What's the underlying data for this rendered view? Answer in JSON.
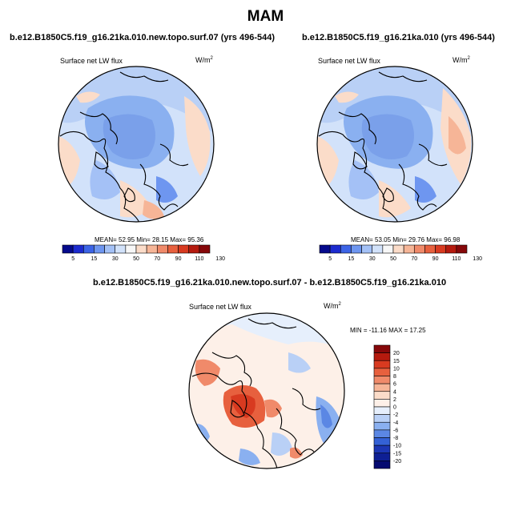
{
  "main_title": "MAM",
  "panels": [
    {
      "id": "left",
      "title": "b.e12.B1850C5.f19_g16.21ka.010.new.topo.surf.07 (yrs 496-544)",
      "variable": "Surface net LW flux",
      "units": "W/m",
      "units_sup": "2",
      "stats": "MEAN=  52.95  Min=  28.15  Max=  95.36"
    },
    {
      "id": "right",
      "title": "b.e12.B1850C5.f19_g16.21ka.010 (yrs 496-544)",
      "variable": "Surface net LW flux",
      "units": "W/m",
      "units_sup": "2",
      "stats": "MEAN=  53.05  Min=  29.76  Max=  96.98"
    },
    {
      "id": "diff",
      "title": "b.e12.B1850C5.f19_g16.21ka.010.new.topo.surf.07 - b.e12.B1850C5.f19_g16.21ka.010",
      "variable": "Surface net LW flux",
      "units": "W/m",
      "units_sup": "2",
      "stats": "MIN = -11.16 MAX =  17.25"
    }
  ],
  "colorbar_abs": {
    "labels": [
      "5",
      "15",
      "30",
      "50",
      "70",
      "90",
      "110",
      "130"
    ],
    "colors": [
      "#050a8c",
      "#1c2bcf",
      "#3c64e6",
      "#6e96f0",
      "#a4c1f6",
      "#d2e2fa",
      "#f7f7f7",
      "#fbdcc9",
      "#f6b597",
      "#f08a6a",
      "#e7603e",
      "#d83a20",
      "#b51a0e",
      "#86080a"
    ]
  },
  "colorbar_diff": {
    "labels": [
      "20",
      "15",
      "10",
      "8",
      "6",
      "4",
      "2",
      "0",
      "-2",
      "-4",
      "-6",
      "-8",
      "-10",
      "-15",
      "-20"
    ],
    "colors": [
      "#86080a",
      "#b51a0e",
      "#d83a20",
      "#e7603e",
      "#f08a6a",
      "#f6b597",
      "#fbdcc9",
      "#fdf0e8",
      "#e6effc",
      "#b9d0f6",
      "#8ab0f0",
      "#5b87e4",
      "#3461d6",
      "#1c36b4",
      "#0e1f94",
      "#050a70"
    ]
  },
  "chart_data": [
    {
      "type": "heatmap",
      "title": "b.e12.B1850C5.f19_g16.21ka.010.new.topo.surf.07 (yrs 496-544)",
      "field": "Surface net LW flux",
      "units": "W/m2",
      "projection": "north polar stereographic",
      "mean": 52.95,
      "min": 28.15,
      "max": 95.36,
      "levels": [
        5,
        15,
        30,
        50,
        70,
        90,
        110,
        130
      ]
    },
    {
      "type": "heatmap",
      "title": "b.e12.B1850C5.f19_g16.21ka.010 (yrs 496-544)",
      "field": "Surface net LW flux",
      "units": "W/m2",
      "projection": "north polar stereographic",
      "mean": 53.05,
      "min": 29.76,
      "max": 96.98,
      "levels": [
        5,
        15,
        30,
        50,
        70,
        90,
        110,
        130
      ]
    },
    {
      "type": "heatmap",
      "title": "b.e12.B1850C5.f19_g16.21ka.010.new.topo.surf.07 - b.e12.B1850C5.f19_g16.21ka.010",
      "field": "Surface net LW flux difference",
      "units": "W/m2",
      "projection": "north polar stereographic",
      "min": -11.16,
      "max": 17.25,
      "levels": [
        -20,
        -15,
        -10,
        -8,
        -6,
        -4,
        -2,
        0,
        2,
        4,
        6,
        8,
        10,
        15,
        20
      ]
    }
  ]
}
